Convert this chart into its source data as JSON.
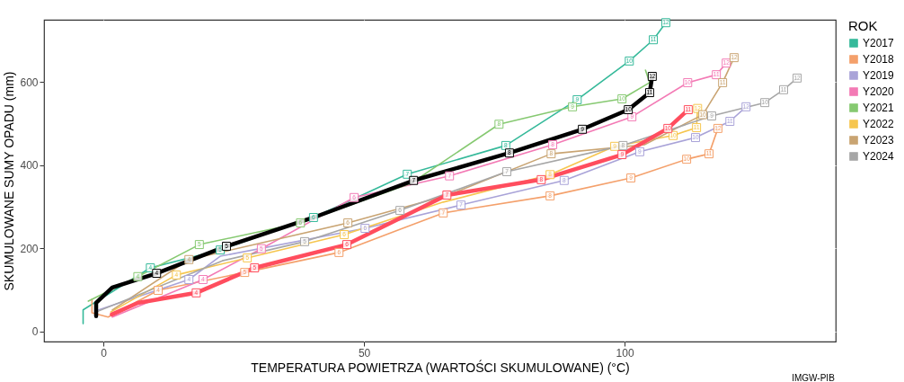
{
  "chart_data": {
    "type": "line",
    "xlabel": "TEMPERATURA POWIETRZA (WARTOŚCI SKUMULOWANE) (°C)",
    "ylabel": "SKUMULOWANE SUMY OPADU (mm)",
    "legend_title": "ROK",
    "xlim": [
      -11.4,
      140.5
    ],
    "ylim": [
      -24,
      749
    ],
    "xticks": [
      0,
      50,
      100
    ],
    "yticks": [
      0,
      200,
      400,
      600
    ],
    "grid": true,
    "legend": "right",
    "marker": "square",
    "line_style": "solid",
    "series": [
      {
        "name": "Y2017",
        "color": "#35b99a",
        "x": [
          -3.9,
          -3.9,
          9.0,
          22.4,
          40.3,
          58.3,
          77.2,
          90.9,
          100.9,
          105.5,
          107.9
        ],
        "values": [
          19,
          52,
          153,
          196,
          274,
          378,
          447,
          557,
          650,
          701,
          742
        ]
      },
      {
        "name": "Y2018",
        "color": "#f4a06b",
        "x": [
          -2.2,
          -2.2,
          0.9,
          10.5,
          27.1,
          45.2,
          65.2,
          85.7,
          101.2,
          111.9,
          116.2,
          117.9
        ],
        "values": [
          78,
          45,
          35,
          99,
          142,
          190,
          285,
          326,
          369,
          414,
          427,
          488
        ]
      },
      {
        "name": "Y2019",
        "color": "#a9a3d8",
        "x": [
          -0.9,
          16.4,
          22.4,
          50.2,
          68.6,
          88.4,
          102.9,
          113.6,
          120.2,
          123.3
        ],
        "values": [
          52,
          125,
          181,
          248,
          304,
          363,
          432,
          466,
          505,
          540
        ]
      },
      {
        "name": "Y2020",
        "color": "#f37ab5",
        "x": [
          1.7,
          19.1,
          30.3,
          48.1,
          66.4,
          86.2,
          101.4,
          112.1,
          117.6,
          119.5
        ],
        "values": [
          35,
          125,
          199,
          322,
          374,
          449,
          516,
          598,
          617,
          645
        ]
      },
      {
        "name": "Y2021",
        "color": "#86c971",
        "x": [
          -2.9,
          6.6,
          18.4,
          37.8,
          59.0,
          75.9,
          90.0,
          99.5,
          104.8,
          104.0
        ],
        "values": [
          73,
          132,
          209,
          261,
          356,
          498,
          540,
          559,
          598,
          628
        ]
      },
      {
        "name": "Y2022",
        "color": "#f6c64f",
        "x": [
          1.4,
          14.0,
          27.6,
          46.2,
          65.2,
          85.7,
          98.1,
          109.3,
          113.8,
          114.0
        ],
        "values": [
          47,
          136,
          177,
          233,
          311,
          377,
          445,
          471,
          490,
          536
        ]
      },
      {
        "name": "Y2023",
        "color": "#c9a472",
        "x": [
          1.7,
          16.4,
          29.0,
          46.9,
          66.2,
          85.9,
          103.8,
          115.0,
          118.8,
          121.0
        ],
        "values": [
          52,
          173,
          209,
          261,
          328,
          427,
          449,
          521,
          598,
          658
        ]
      },
      {
        "name": "Y2024",
        "color": "#a6a6a6",
        "x": [
          -1.4,
          22.8,
          38.6,
          56.9,
          77.4,
          99.7,
          116.7,
          126.9,
          130.5,
          133.1
        ],
        "values": [
          47,
          170,
          216,
          291,
          384,
          447,
          518,
          550,
          581,
          609
        ]
      },
      {
        "color": "#ff4d5e",
        "x": [
          1.6,
          6.6,
          17.8,
          29.0,
          46.7,
          65.9,
          84.0,
          99.5,
          108.3,
          112.2
        ],
        "values": [
          41,
          69,
          93,
          153,
          209,
          328,
          365,
          425,
          488,
          533
        ]
      },
      {
        "color": "#000000",
        "x": [
          -1.4,
          -1.4,
          1.7,
          10.2,
          23.6,
          40.3,
          59.5,
          77.9,
          91.9,
          100.7,
          104.8,
          105.3
        ],
        "values": [
          37,
          69,
          106,
          140,
          205,
          274,
          363,
          429,
          486,
          533,
          574,
          613
        ]
      }
    ],
    "annotations": [
      "IMGW-PIB",
      {
        "text": "4",
        "x": 9.0,
        "y": 153
      },
      {
        "text": "5",
        "x": 22.4,
        "y": 196
      },
      {
        "text": "7",
        "x": 58.3,
        "y": 378
      },
      {
        "text": "8",
        "x": 77.2,
        "y": 447
      },
      {
        "text": "9",
        "x": 90.9,
        "y": 557
      },
      {
        "text": "10",
        "x": 100.9,
        "y": 650
      },
      {
        "text": "11",
        "x": 105.5,
        "y": 701
      },
      {
        "text": "12",
        "x": 107.9,
        "y": 742
      },
      {
        "text": "4",
        "x": 10.5,
        "y": 99
      },
      {
        "text": "5",
        "x": 27.1,
        "y": 142
      },
      {
        "text": "6",
        "x": 45.2,
        "y": 190
      },
      {
        "text": "7",
        "x": 65.2,
        "y": 285
      },
      {
        "text": "8",
        "x": 85.7,
        "y": 326
      },
      {
        "text": "9",
        "x": 101.2,
        "y": 369
      },
      {
        "text": "10",
        "x": 111.9,
        "y": 414
      },
      {
        "text": "11",
        "x": 116.2,
        "y": 427
      },
      {
        "text": "12",
        "x": 117.9,
        "y": 488
      },
      {
        "text": "4",
        "x": 16.4,
        "y": 125
      },
      {
        "text": "6",
        "x": 50.2,
        "y": 248
      },
      {
        "text": "7",
        "x": 68.6,
        "y": 304
      },
      {
        "text": "8",
        "x": 88.4,
        "y": 363
      },
      {
        "text": "9",
        "x": 102.9,
        "y": 432
      },
      {
        "text": "10",
        "x": 113.6,
        "y": 466
      },
      {
        "text": "11",
        "x": 120.2,
        "y": 505
      },
      {
        "text": "12",
        "x": 123.3,
        "y": 540
      },
      {
        "text": "4",
        "x": 19.1,
        "y": 125
      },
      {
        "text": "5",
        "x": 30.3,
        "y": 199
      },
      {
        "text": "6",
        "x": 48.1,
        "y": 322
      },
      {
        "text": "7",
        "x": 66.4,
        "y": 374
      },
      {
        "text": "8",
        "x": 86.2,
        "y": 449
      },
      {
        "text": "9",
        "x": 101.4,
        "y": 516
      },
      {
        "text": "10",
        "x": 112.1,
        "y": 598
      },
      {
        "text": "11",
        "x": 117.6,
        "y": 617
      },
      {
        "text": "12",
        "x": 119.5,
        "y": 645
      },
      {
        "text": "4",
        "x": 6.6,
        "y": 132
      },
      {
        "text": "5",
        "x": 18.4,
        "y": 209
      },
      {
        "text": "6",
        "x": 37.8,
        "y": 261
      },
      {
        "text": "8",
        "x": 75.9,
        "y": 498
      },
      {
        "text": "9",
        "x": 90.0,
        "y": 540
      },
      {
        "text": "10",
        "x": 99.5,
        "y": 559
      },
      {
        "text": "4",
        "x": 14.0,
        "y": 136
      },
      {
        "text": "5",
        "x": 27.6,
        "y": 177
      },
      {
        "text": "6",
        "x": 46.2,
        "y": 233
      },
      {
        "text": "8",
        "x": 85.7,
        "y": 377
      },
      {
        "text": "9",
        "x": 98.1,
        "y": 445
      },
      {
        "text": "10",
        "x": 109.3,
        "y": 471
      },
      {
        "text": "11",
        "x": 113.8,
        "y": 490
      },
      {
        "text": "12",
        "x": 114.0,
        "y": 536
      },
      {
        "text": "4",
        "x": 16.4,
        "y": 173
      },
      {
        "text": "6",
        "x": 46.9,
        "y": 261
      },
      {
        "text": "8",
        "x": 85.9,
        "y": 427
      },
      {
        "text": "10",
        "x": 115.0,
        "y": 521
      },
      {
        "text": "11",
        "x": 118.8,
        "y": 598
      },
      {
        "text": "12",
        "x": 121.0,
        "y": 658
      },
      {
        "text": "5",
        "x": 38.6,
        "y": 216
      },
      {
        "text": "6",
        "x": 56.9,
        "y": 291
      },
      {
        "text": "7",
        "x": 77.4,
        "y": 384
      },
      {
        "text": "8",
        "x": 99.7,
        "y": 447
      },
      {
        "text": "9",
        "x": 116.7,
        "y": 518
      },
      {
        "text": "10",
        "x": 126.9,
        "y": 550
      },
      {
        "text": "11",
        "x": 130.5,
        "y": 581
      },
      {
        "text": "12",
        "x": 133.1,
        "y": 609
      },
      {
        "text": "4",
        "x": 17.8,
        "y": 93
      },
      {
        "text": "5",
        "x": 29.0,
        "y": 153
      },
      {
        "text": "6",
        "x": 46.7,
        "y": 209
      },
      {
        "text": "7",
        "x": 65.9,
        "y": 328
      },
      {
        "text": "8",
        "x": 84.0,
        "y": 365
      },
      {
        "text": "9",
        "x": 99.5,
        "y": 425
      },
      {
        "text": "10",
        "x": 108.3,
        "y": 488
      },
      {
        "text": "11",
        "x": 112.2,
        "y": 533
      },
      {
        "text": "4",
        "x": 10.2,
        "y": 140
      },
      {
        "text": "5",
        "x": 23.6,
        "y": 205
      },
      {
        "text": "6",
        "x": 40.3,
        "y": 274
      },
      {
        "text": "7",
        "x": 59.5,
        "y": 363
      },
      {
        "text": "8",
        "x": 77.9,
        "y": 429
      },
      {
        "text": "9",
        "x": 91.9,
        "y": 486
      },
      {
        "text": "10",
        "x": 100.7,
        "y": 533
      },
      {
        "text": "11",
        "x": 104.8,
        "y": 574
      },
      {
        "text": "12",
        "x": 105.3,
        "y": 613
      }
    ]
  }
}
